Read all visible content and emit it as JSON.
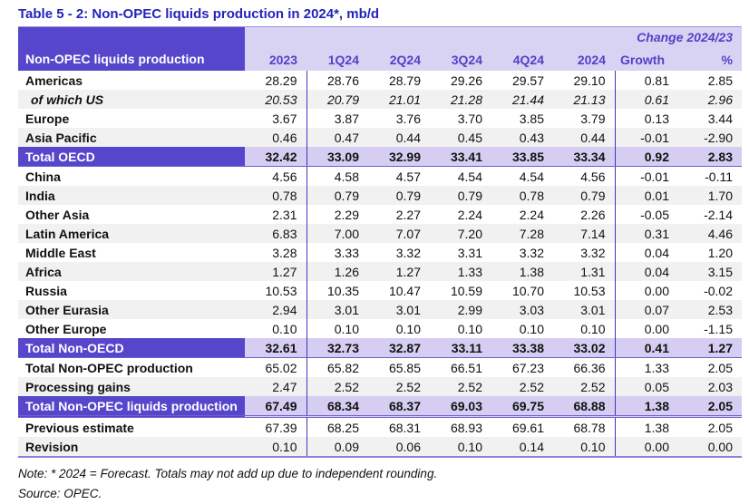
{
  "title": "Table 5 - 2: Non-OPEC liquids production in 2024*, mb/d",
  "colors": {
    "accent_purple": "#5646cb",
    "header_lavender": "#d9d3f3",
    "total_lavender": "#d6cef2",
    "title_blue": "#2323bc",
    "header_text": "#5340c8"
  },
  "table": {
    "header": {
      "label": "Non-OPEC liquids production",
      "change_label": "Change 2024/23",
      "columns": [
        "2023",
        "1Q24",
        "2Q24",
        "3Q24",
        "4Q24",
        "2024",
        "Growth",
        "%"
      ]
    },
    "rows": [
      {
        "label": "Americas",
        "style": "normal",
        "values": [
          "28.29",
          "28.76",
          "28.79",
          "29.26",
          "29.57",
          "29.10",
          "0.81",
          "2.85"
        ]
      },
      {
        "label": "of which US",
        "style": "sub",
        "values": [
          "20.53",
          "20.79",
          "21.01",
          "21.28",
          "21.44",
          "21.13",
          "0.61",
          "2.96"
        ]
      },
      {
        "label": "Europe",
        "style": "normal",
        "values": [
          "3.67",
          "3.87",
          "3.76",
          "3.70",
          "3.85",
          "3.79",
          "0.13",
          "3.44"
        ]
      },
      {
        "label": "Asia Pacific",
        "style": "alt",
        "values": [
          "0.46",
          "0.47",
          "0.44",
          "0.45",
          "0.43",
          "0.44",
          "-0.01",
          "-2.90"
        ]
      },
      {
        "label": "Total OECD",
        "style": "total",
        "values": [
          "32.42",
          "33.09",
          "32.99",
          "33.41",
          "33.85",
          "33.34",
          "0.92",
          "2.83"
        ]
      },
      {
        "label": "China",
        "style": "normal",
        "values": [
          "4.56",
          "4.58",
          "4.57",
          "4.54",
          "4.54",
          "4.56",
          "-0.01",
          "-0.11"
        ]
      },
      {
        "label": "India",
        "style": "alt",
        "values": [
          "0.78",
          "0.79",
          "0.79",
          "0.79",
          "0.78",
          "0.79",
          "0.01",
          "1.70"
        ]
      },
      {
        "label": "Other Asia",
        "style": "normal",
        "values": [
          "2.31",
          "2.29",
          "2.27",
          "2.24",
          "2.24",
          "2.26",
          "-0.05",
          "-2.14"
        ]
      },
      {
        "label": "Latin America",
        "style": "alt",
        "values": [
          "6.83",
          "7.00",
          "7.07",
          "7.20",
          "7.28",
          "7.14",
          "0.31",
          "4.46"
        ]
      },
      {
        "label": "Middle East",
        "style": "normal",
        "values": [
          "3.28",
          "3.33",
          "3.32",
          "3.31",
          "3.32",
          "3.32",
          "0.04",
          "1.20"
        ]
      },
      {
        "label": "Africa",
        "style": "alt",
        "values": [
          "1.27",
          "1.26",
          "1.27",
          "1.33",
          "1.38",
          "1.31",
          "0.04",
          "3.15"
        ]
      },
      {
        "label": "Russia",
        "style": "normal",
        "values": [
          "10.53",
          "10.35",
          "10.47",
          "10.59",
          "10.70",
          "10.53",
          "0.00",
          "-0.02"
        ]
      },
      {
        "label": "Other Eurasia",
        "style": "alt",
        "values": [
          "2.94",
          "3.01",
          "3.01",
          "2.99",
          "3.03",
          "3.01",
          "0.07",
          "2.53"
        ]
      },
      {
        "label": "Other Europe",
        "style": "normal",
        "values": [
          "0.10",
          "0.10",
          "0.10",
          "0.10",
          "0.10",
          "0.10",
          "0.00",
          "-1.15"
        ]
      },
      {
        "label": "Total Non-OECD",
        "style": "total",
        "values": [
          "32.61",
          "32.73",
          "32.87",
          "33.11",
          "33.38",
          "33.02",
          "0.41",
          "1.27"
        ]
      },
      {
        "label": "Total Non-OPEC production",
        "style": "normal",
        "values": [
          "65.02",
          "65.82",
          "65.85",
          "66.51",
          "67.23",
          "66.36",
          "1.33",
          "2.05"
        ]
      },
      {
        "label": "Processing gains",
        "style": "alt",
        "values": [
          "2.47",
          "2.52",
          "2.52",
          "2.52",
          "2.52",
          "2.52",
          "0.05",
          "2.03"
        ]
      },
      {
        "label": "Total Non-OPEC liquids production",
        "style": "total",
        "sep": "double",
        "values": [
          "67.49",
          "68.34",
          "68.37",
          "69.03",
          "69.75",
          "68.88",
          "1.38",
          "2.05"
        ]
      },
      {
        "label": "Previous estimate",
        "style": "normal",
        "values": [
          "67.39",
          "68.25",
          "68.31",
          "68.93",
          "69.61",
          "68.78",
          "1.38",
          "2.05"
        ]
      },
      {
        "label": "Revision",
        "style": "alt",
        "values": [
          "0.10",
          "0.09",
          "0.06",
          "0.10",
          "0.14",
          "0.10",
          "0.00",
          "0.00"
        ]
      }
    ]
  },
  "notes": {
    "note": "Note: * 2024 = Forecast. Totals may not add up due to independent rounding.",
    "source": "Source: OPEC."
  }
}
